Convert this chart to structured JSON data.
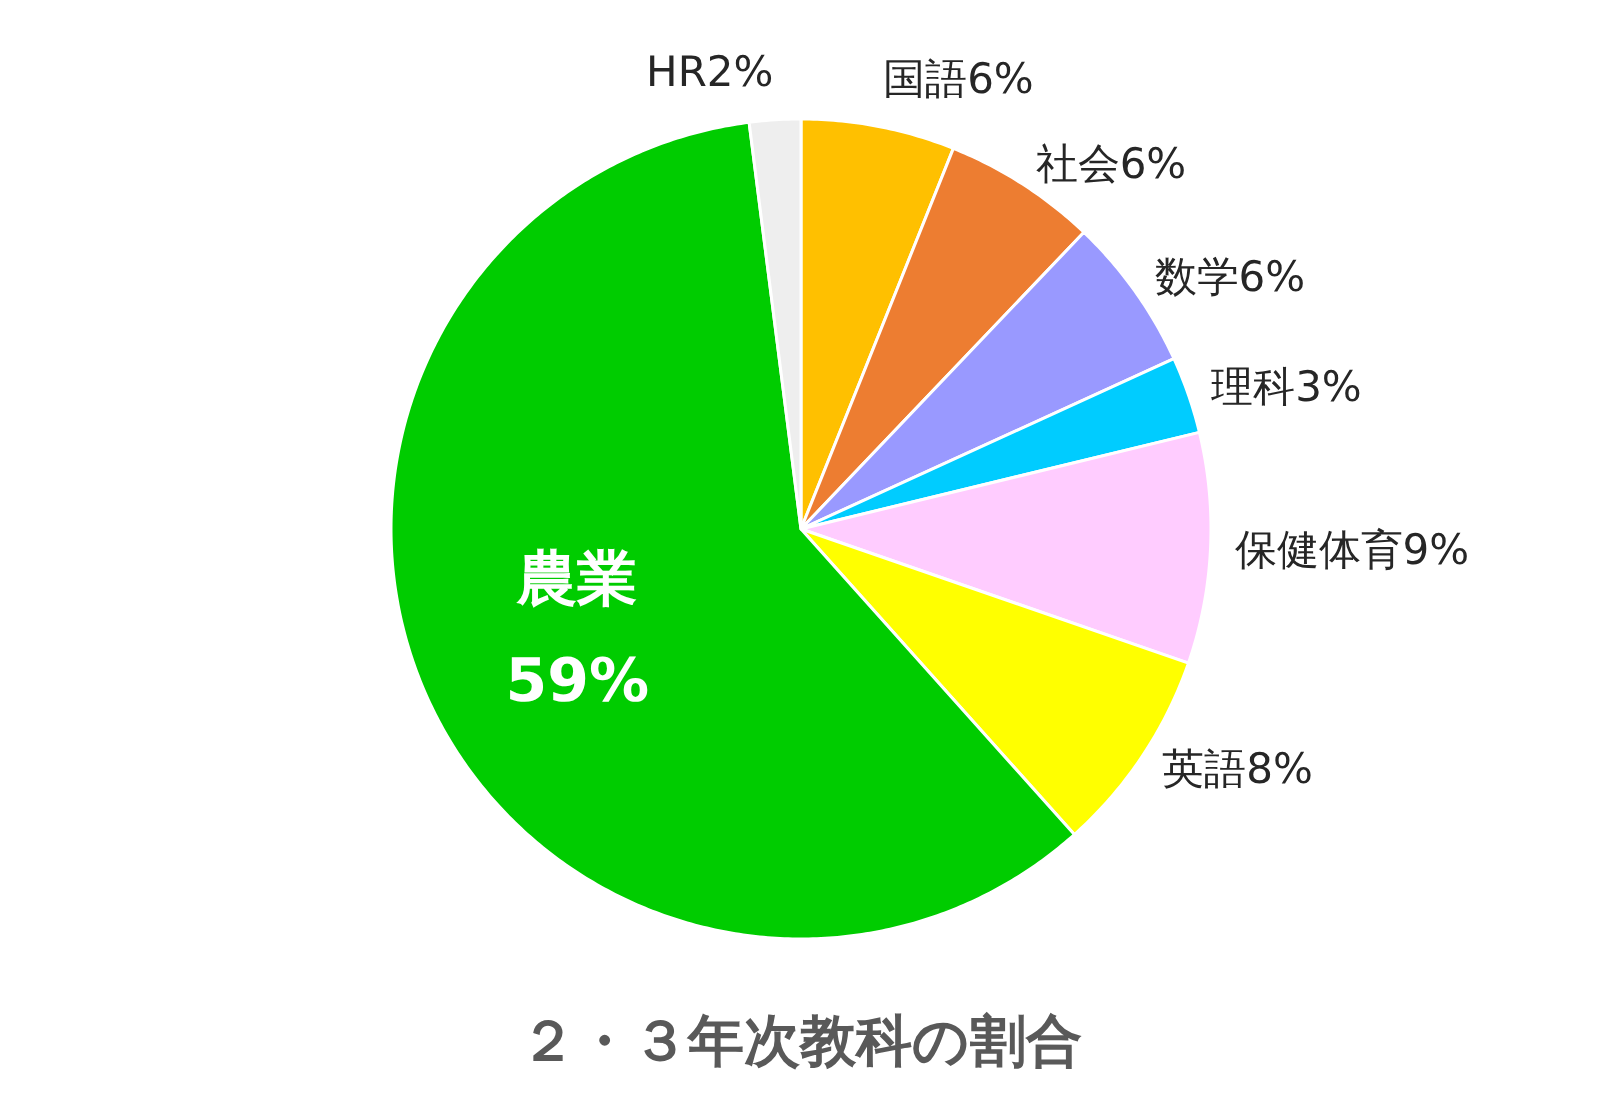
{
  "chart_data": {
    "type": "pie",
    "title": "２・３年次教科の割合",
    "categories": [
      "国語",
      "社会",
      "数学",
      "理科",
      "保健体育",
      "英語",
      "農業",
      "HR"
    ],
    "values": [
      6,
      6,
      6,
      3,
      9,
      8,
      59,
      2
    ],
    "value_labels": [
      "6%",
      "6%",
      "6%",
      "3%",
      "9%",
      "8%",
      "59%",
      "2%"
    ],
    "colors": [
      "#ffc000",
      "#ed7d31",
      "#9999ff",
      "#00ccff",
      "#ffccff",
      "#ffff00",
      "#00cc00",
      "#eeeeee"
    ]
  }
}
